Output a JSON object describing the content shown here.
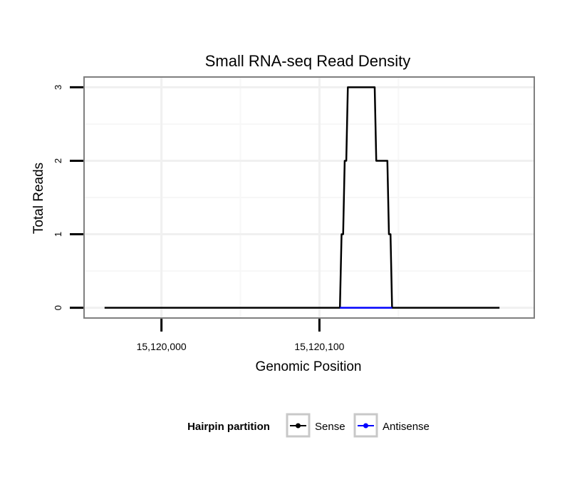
{
  "chart_data": {
    "type": "line",
    "title": "Small RNA-seq Read Density",
    "xlabel": "Genomic Position",
    "ylabel": "Total Reads",
    "xlim": [
      15119951,
      15120236
    ],
    "ylim": [
      -0.14,
      3.14
    ],
    "x_ticks": [
      {
        "value": 15120000,
        "label": "15,120,000"
      },
      {
        "value": 15120100,
        "label": "15,120,100"
      }
    ],
    "y_ticks": [
      {
        "value": 0,
        "label": "0"
      },
      {
        "value": 1,
        "label": "1"
      },
      {
        "value": 2,
        "label": "2"
      },
      {
        "value": 3,
        "label": "3"
      }
    ],
    "grid": true,
    "legend": {
      "title": "Hairpin partition",
      "position": "bottom",
      "entries": [
        "Sense",
        "Antisense"
      ]
    },
    "series": [
      {
        "name": "Sense",
        "color": "#000000",
        "x": [
          15119964,
          15120113,
          15120114,
          15120115,
          15120116,
          15120117,
          15120118,
          15120135,
          15120136,
          15120137,
          15120143,
          15120144,
          15120145,
          15120146,
          15120214
        ],
        "y": [
          0,
          0,
          1,
          1,
          2,
          2,
          3,
          3,
          2,
          2,
          2,
          1,
          1,
          0,
          0
        ]
      },
      {
        "name": "Antisense",
        "color": "#0000ff",
        "x": [
          15120113,
          15120146
        ],
        "y": [
          0,
          0
        ]
      }
    ]
  }
}
